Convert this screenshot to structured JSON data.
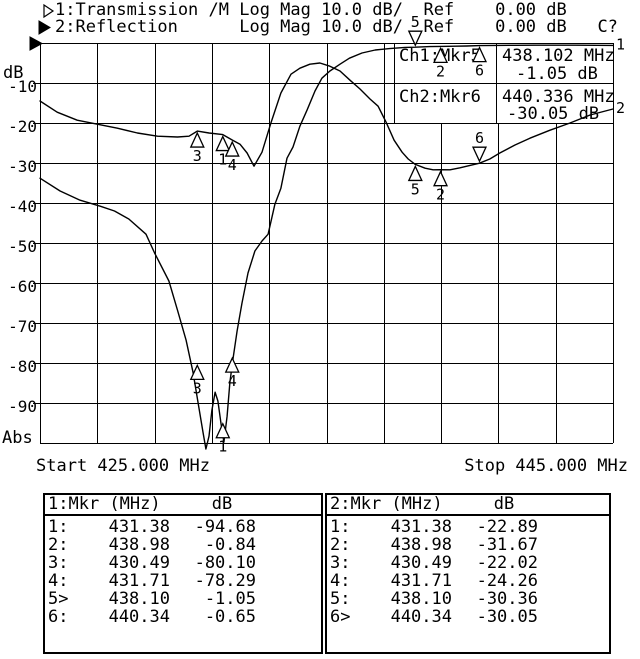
{
  "header": {
    "line1": "1:Transmission /M Log Mag 10.0 dB/  Ref    0.00 dB",
    "line2": "2:Reflection      Log Mag 10.0 dB/  Ref    0.00 dB   C?"
  },
  "axis": {
    "unit": "dB",
    "abs": "Abs",
    "ticks": [
      "-10",
      "-20",
      "-30",
      "-40",
      "-50",
      "-60",
      "-70",
      "-80",
      "-90"
    ],
    "start": "Start 425.000 MHz",
    "stop": "Stop 445.000 MHz"
  },
  "readout": {
    "ch1_label": "Ch1:Mkr5",
    "ch1_freq": "438.102 MHz",
    "ch1_val": "-1.05 dB",
    "ch2_label": "Ch2:Mkr6",
    "ch2_freq": "440.336 MHz",
    "ch2_val": "-30.05 dB"
  },
  "tables": {
    "ch1": {
      "header": "1:Mkr (MHz)     dB",
      "rows": [
        {
          "no": "1:",
          "f": "431.38",
          "db": "-94.68"
        },
        {
          "no": "2:",
          "f": "438.98",
          "db": "-0.84"
        },
        {
          "no": "3:",
          "f": "430.49",
          "db": "-80.10"
        },
        {
          "no": "4:",
          "f": "431.71",
          "db": "-78.29"
        },
        {
          "no": "5>",
          "f": "438.10",
          "db": "-1.05"
        },
        {
          "no": "6:",
          "f": "440.34",
          "db": "-0.65"
        }
      ]
    },
    "ch2": {
      "header": "2:Mkr (MHz)     dB",
      "rows": [
        {
          "no": "1:",
          "f": "431.38",
          "db": "-22.89"
        },
        {
          "no": "2:",
          "f": "438.98",
          "db": "-31.67"
        },
        {
          "no": "3:",
          "f": "430.49",
          "db": "-22.02"
        },
        {
          "no": "4:",
          "f": "431.71",
          "db": "-24.26"
        },
        {
          "no": "5:",
          "f": "438.10",
          "db": "-30.36"
        },
        {
          "no": "6>",
          "f": "440.34",
          "db": "-30.05"
        }
      ]
    }
  },
  "chart_data": {
    "type": "line",
    "title": "",
    "xlabel": "MHz",
    "ylabel": "dB",
    "xlim": [
      425,
      445
    ],
    "ylim": [
      -100,
      0
    ],
    "scale_per_div_db": 10,
    "grid": "10x10 graticule, solid lines",
    "legend_position": "none",
    "series": [
      {
        "name": "1: Transmission (Log Mag, 10 dB/div, Ref 0 dB)",
        "end_label": "1",
        "points": [
          [
            425.0,
            -33.8
          ],
          [
            425.7,
            -37.0
          ],
          [
            426.4,
            -39.3
          ],
          [
            427.1,
            -40.8
          ],
          [
            427.6,
            -42.0
          ],
          [
            428.1,
            -44.0
          ],
          [
            428.7,
            -47.8
          ],
          [
            429.0,
            -52.5
          ],
          [
            429.5,
            -59.5
          ],
          [
            429.8,
            -66.8
          ],
          [
            430.1,
            -74.3
          ],
          [
            430.34,
            -82.3
          ],
          [
            430.55,
            -91.3
          ],
          [
            430.69,
            -97.3
          ],
          [
            430.79,
            -101.5
          ],
          [
            430.9,
            -98.3
          ],
          [
            431.0,
            -91.8
          ],
          [
            431.11,
            -87.3
          ],
          [
            431.21,
            -89.5
          ],
          [
            431.32,
            -95.3
          ],
          [
            431.42,
            -99.8
          ],
          [
            431.53,
            -93.3
          ],
          [
            431.63,
            -84.8
          ],
          [
            431.74,
            -78.8
          ],
          [
            431.88,
            -72.0
          ],
          [
            432.05,
            -65.0
          ],
          [
            432.26,
            -57.5
          ],
          [
            432.5,
            -52.0
          ],
          [
            432.75,
            -49.5
          ],
          [
            432.96,
            -47.8
          ],
          [
            433.2,
            -40.3
          ],
          [
            433.41,
            -36.3
          ],
          [
            433.62,
            -28.8
          ],
          [
            433.83,
            -26.0
          ],
          [
            434.07,
            -20.8
          ],
          [
            434.32,
            -16.8
          ],
          [
            434.6,
            -12.0
          ],
          [
            434.84,
            -8.8
          ],
          [
            435.12,
            -7.0
          ],
          [
            435.47,
            -5.3
          ],
          [
            435.8,
            -3.8
          ],
          [
            436.24,
            -2.5
          ],
          [
            436.7,
            -1.75
          ],
          [
            437.2,
            -1.4
          ],
          [
            437.74,
            -1.1
          ],
          [
            438.1,
            -1.05
          ],
          [
            438.6,
            -0.9
          ],
          [
            438.98,
            -0.84
          ],
          [
            439.5,
            -0.8
          ],
          [
            439.9,
            -0.75
          ],
          [
            440.34,
            -0.65
          ],
          [
            440.9,
            -0.6
          ],
          [
            441.6,
            -0.57
          ],
          [
            442.3,
            -0.55
          ],
          [
            443.0,
            -0.55
          ],
          [
            443.7,
            -0.55
          ],
          [
            444.4,
            -0.57
          ],
          [
            445.0,
            -0.6
          ]
        ]
      },
      {
        "name": "2: Reflection (Log Mag, 10 dB/div, Ref 0 dB)",
        "end_label": "2",
        "points": [
          [
            425.0,
            -14.5
          ],
          [
            425.6,
            -17.3
          ],
          [
            426.3,
            -19.3
          ],
          [
            427.0,
            -20.3
          ],
          [
            427.7,
            -21.3
          ],
          [
            428.4,
            -22.5
          ],
          [
            429.1,
            -23.3
          ],
          [
            429.8,
            -23.5
          ],
          [
            430.2,
            -23.3
          ],
          [
            430.49,
            -22.02
          ],
          [
            430.9,
            -22.5
          ],
          [
            431.38,
            -22.89
          ],
          [
            431.71,
            -24.26
          ],
          [
            431.98,
            -25.3
          ],
          [
            432.23,
            -27.5
          ],
          [
            432.47,
            -30.8
          ],
          [
            432.75,
            -27.3
          ],
          [
            433.06,
            -20.0
          ],
          [
            433.41,
            -12.5
          ],
          [
            433.76,
            -7.8
          ],
          [
            434.07,
            -6.3
          ],
          [
            434.42,
            -5.3
          ],
          [
            434.77,
            -5.0
          ],
          [
            435.12,
            -5.8
          ],
          [
            435.47,
            -7.0
          ],
          [
            435.82,
            -9.3
          ],
          [
            436.17,
            -11.5
          ],
          [
            436.52,
            -14.0
          ],
          [
            436.8,
            -15.8
          ],
          [
            437.08,
            -19.8
          ],
          [
            437.36,
            -24.3
          ],
          [
            437.64,
            -27.3
          ],
          [
            437.85,
            -29.0
          ],
          [
            438.1,
            -30.36
          ],
          [
            438.44,
            -31.3
          ],
          [
            438.72,
            -31.7
          ],
          [
            438.98,
            -31.67
          ],
          [
            439.31,
            -31.7
          ],
          [
            439.66,
            -31.2
          ],
          [
            440.01,
            -30.6
          ],
          [
            440.34,
            -30.05
          ],
          [
            440.7,
            -29.0
          ],
          [
            441.05,
            -27.5
          ],
          [
            441.58,
            -25.5
          ],
          [
            442.1,
            -23.8
          ],
          [
            442.8,
            -21.8
          ],
          [
            443.5,
            -20.0
          ],
          [
            444.2,
            -18.0
          ],
          [
            445.0,
            -16.5
          ]
        ]
      }
    ],
    "markers": {
      "ch1": [
        {
          "n": "1",
          "f": 431.38,
          "db": -94.68,
          "dir": "up"
        },
        {
          "n": "2",
          "f": 438.98,
          "db": -0.84,
          "dir": "up"
        },
        {
          "n": "3",
          "f": 430.49,
          "db": -80.1,
          "dir": "up"
        },
        {
          "n": "4",
          "f": 431.71,
          "db": -78.29,
          "dir": "up"
        },
        {
          "n": "5",
          "f": 438.1,
          "db": -1.05,
          "dir": "down",
          "active": true
        },
        {
          "n": "6",
          "f": 440.34,
          "db": -0.65,
          "dir": "up"
        }
      ],
      "ch2": [
        {
          "n": "1",
          "f": 431.38,
          "db": -22.89,
          "dir": "up"
        },
        {
          "n": "2",
          "f": 438.98,
          "db": -31.67,
          "dir": "up"
        },
        {
          "n": "3",
          "f": 430.49,
          "db": -22.02,
          "dir": "up"
        },
        {
          "n": "4",
          "f": 431.71,
          "db": -24.26,
          "dir": "up"
        },
        {
          "n": "5",
          "f": 438.1,
          "db": -30.36,
          "dir": "up"
        },
        {
          "n": "6",
          "f": 440.34,
          "db": -30.05,
          "dir": "down",
          "active": true
        }
      ]
    }
  }
}
